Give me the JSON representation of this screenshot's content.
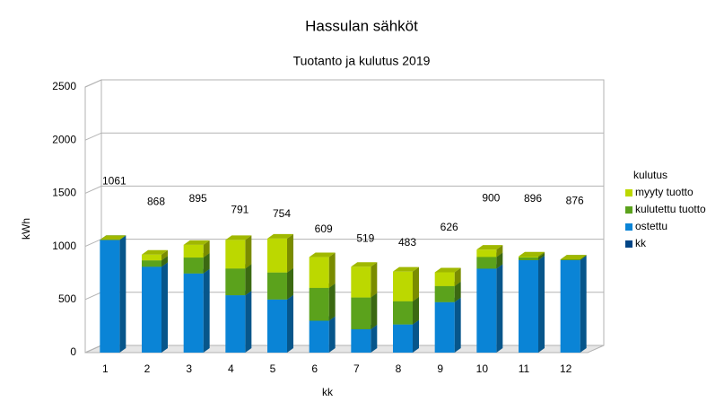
{
  "chart_data": {
    "type": "bar",
    "stacked": true,
    "three_d": true,
    "title": "Hassulan sähköt",
    "subtitle": "Tuotanto ja kulutus 2019",
    "x_label": "kk",
    "y_label": "kWh",
    "categories": [
      "1",
      "2",
      "3",
      "4",
      "5",
      "6",
      "7",
      "8",
      "9",
      "10",
      "11",
      "12"
    ],
    "series": [
      {
        "name": "myyty tuotto",
        "color": "#bcd800",
        "values": [
          0,
          55,
          120,
          270,
          320,
          290,
          290,
          280,
          130,
          70,
          10,
          0
        ]
      },
      {
        "name": "kulutettu tuotto",
        "color": "#5ba21c",
        "values": [
          0,
          60,
          150,
          251,
          254,
          309,
          299,
          218,
          151,
          110,
          26,
          6
        ]
      },
      {
        "name": "ostettu",
        "color": "#0a84d6",
        "values": [
          1061,
          808,
          745,
          540,
          500,
          300,
          220,
          265,
          475,
          790,
          870,
          870
        ]
      },
      {
        "name": "kk",
        "color": "#004586",
        "values": [
          null,
          null,
          null,
          null,
          null,
          null,
          null,
          null,
          null,
          null,
          null,
          null
        ]
      }
    ],
    "data_labels": [
      1061,
      868,
      895,
      791,
      754,
      609,
      519,
      483,
      626,
      900,
      896,
      876
    ],
    "legend_title": "kulutus",
    "legend": "right",
    "ylim": [
      0,
      2500
    ],
    "yticks": [
      0,
      500,
      1000,
      1500,
      2000,
      2500
    ],
    "grid": true
  }
}
